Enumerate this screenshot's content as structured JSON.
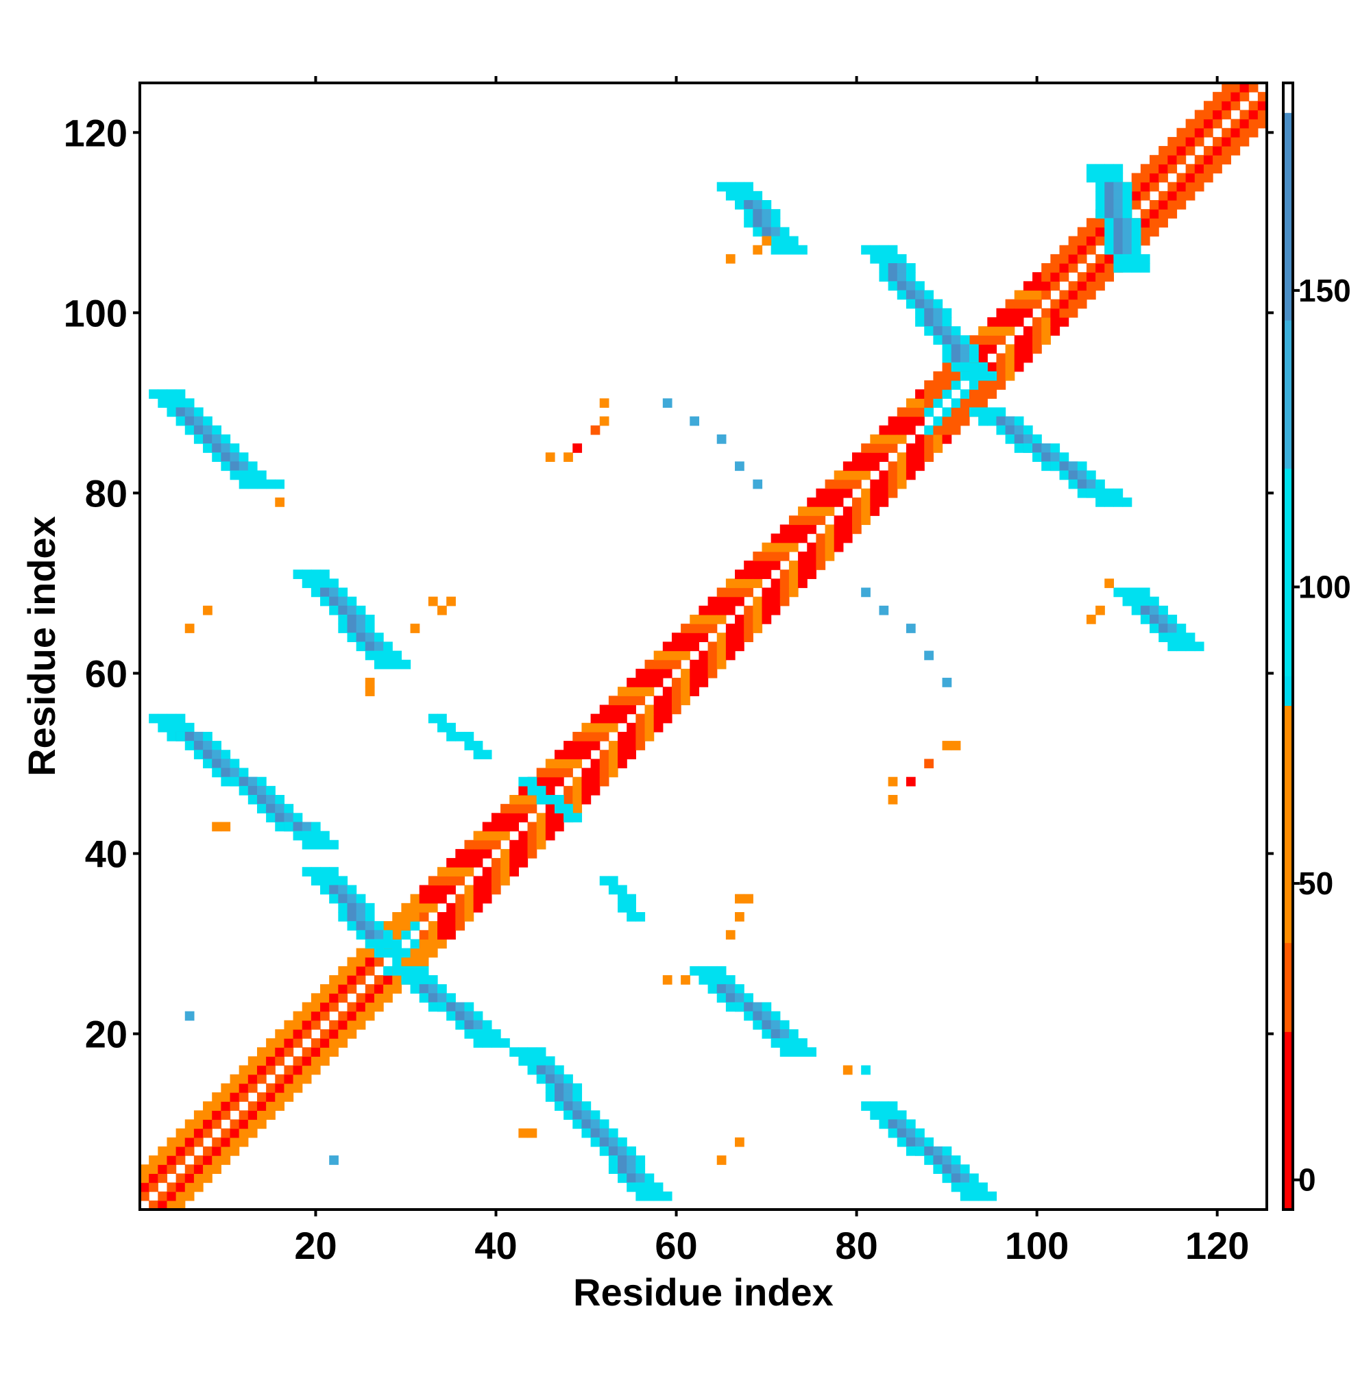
{
  "chart_data": {
    "type": "heatmap",
    "title": "",
    "xlabel": "Residue index",
    "ylabel": "Residue index",
    "xlim": [
      1,
      125
    ],
    "ylim": [
      1,
      125
    ],
    "x_ticks": [
      20,
      40,
      60,
      80,
      100,
      120
    ],
    "y_ticks": [
      20,
      40,
      60,
      80,
      100,
      120
    ],
    "grid": false,
    "colorbar": {
      "range": [
        -5,
        185
      ],
      "ticks": [
        0,
        50,
        100,
        150
      ],
      "bands": [
        {
          "from": -5,
          "to": 25,
          "color": "#ff0000"
        },
        {
          "from": 25,
          "to": 40,
          "color": "#ff5a00"
        },
        {
          "from": 40,
          "to": 80,
          "color": "#ff8c00"
        },
        {
          "from": 80,
          "to": 85,
          "color": "#00d9ee"
        },
        {
          "from": 85,
          "to": 120,
          "color": "#00e2ee"
        },
        {
          "from": 120,
          "to": 145,
          "color": "#3cb0dc"
        },
        {
          "from": 145,
          "to": 180,
          "color": "#4a8ec6"
        },
        {
          "from": 180,
          "to": 185,
          "color": "#ffffff"
        }
      ]
    },
    "value_colors": {
      "red": "#ff0000",
      "red_orange": "#ff5a00",
      "orange": "#ff8c00",
      "cyan": "#00e0f0",
      "light_blue": "#3fa9d8",
      "steel_blue": "#4a8ec6"
    },
    "regions": [
      {
        "name": "diagonal-band",
        "x1": 1,
        "y1": 1,
        "x2": 125,
        "y2": 125
      },
      {
        "name": "sheet-A",
        "x1": 2,
        "y1": 91,
        "x2": 12,
        "y2": 81
      },
      {
        "name": "sheet-B",
        "x1": 2,
        "y1": 55,
        "x2": 19,
        "y2": 41
      },
      {
        "name": "sheet-C",
        "x1": 19,
        "y1": 38,
        "x2": 27,
        "y2": 29
      },
      {
        "name": "sheet-D",
        "x1": 18,
        "y1": 71,
        "x2": 27,
        "y2": 61
      },
      {
        "name": "sheet-E",
        "x1": 29,
        "y1": 27,
        "x2": 38,
        "y2": 19
      },
      {
        "name": "sheet-F",
        "x1": 42,
        "y1": 18,
        "x2": 56,
        "y2": 2
      },
      {
        "name": "sheet-G",
        "x1": 62,
        "y1": 27,
        "x2": 72,
        "y2": 18
      },
      {
        "name": "sheet-H",
        "x1": 65,
        "y1": 114,
        "x2": 71,
        "y2": 107
      },
      {
        "name": "sheet-I",
        "x1": 81,
        "y1": 107,
        "x2": 92,
        "y2": 93
      },
      {
        "name": "sheet-J",
        "x1": 93,
        "y1": 89,
        "x2": 107,
        "y2": 79
      },
      {
        "name": "sheet-K",
        "x1": 109,
        "y1": 69,
        "x2": 115,
        "y2": 63
      },
      {
        "name": "sheet-L",
        "x1": 81,
        "y1": 12,
        "x2": 92,
        "y2": 2
      },
      {
        "name": "sheet-M",
        "x1": 106,
        "y1": 116,
        "x2": 109,
        "y2": 105
      },
      {
        "name": "patch-N",
        "x1": 33,
        "y1": 55,
        "x2": 38,
        "y2": 51
      },
      {
        "name": "patch-O",
        "x1": 52,
        "y1": 37,
        "x2": 55,
        "y2": 33
      },
      {
        "name": "patch-P",
        "x1": 43,
        "y1": 48,
        "x2": 48,
        "y2": 44
      }
    ]
  }
}
